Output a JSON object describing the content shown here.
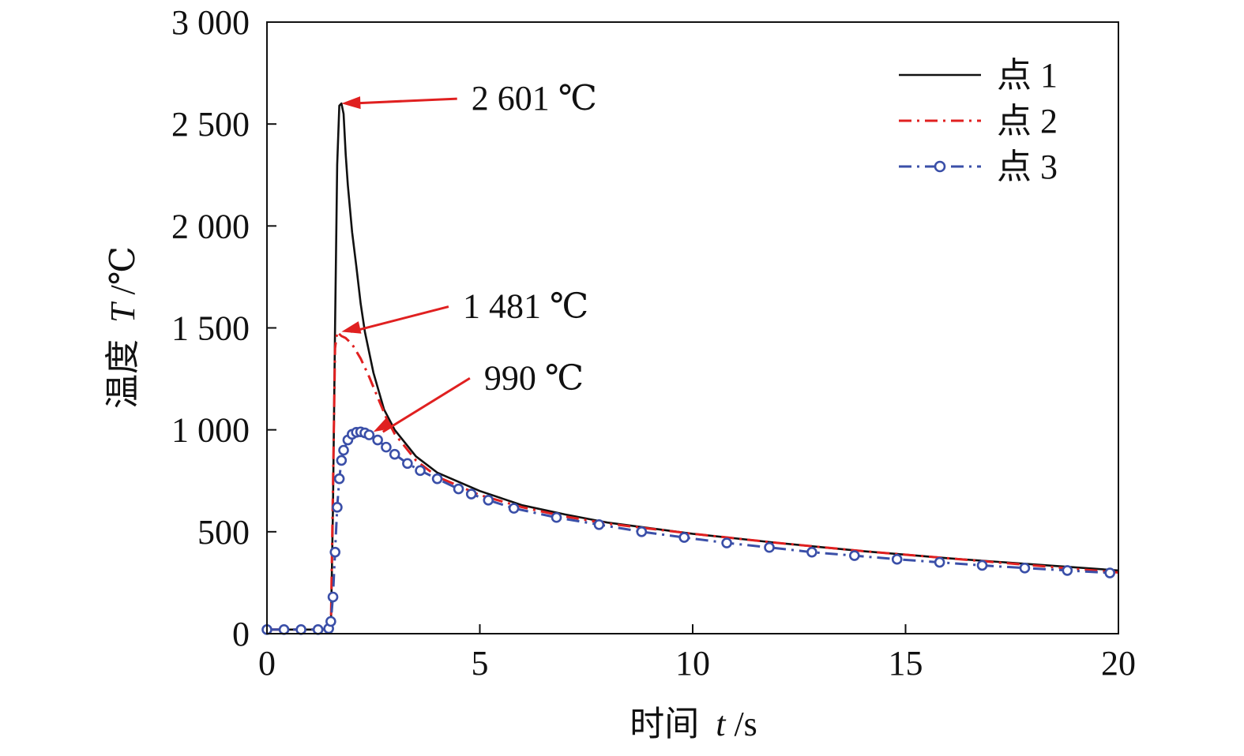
{
  "chart_data": {
    "type": "line",
    "xlabel_cn": "时间",
    "xlabel_var": "t",
    "xlabel_unit": "/s",
    "ylabel_cn": "温度",
    "ylabel_var": "T",
    "ylabel_unit": "/℃",
    "xlim": [
      0,
      20
    ],
    "ylim": [
      0,
      3000
    ],
    "xticks": [
      0,
      5,
      10,
      15,
      20
    ],
    "xtick_labels": [
      "0",
      "5",
      "10",
      "15",
      "20"
    ],
    "yticks": [
      0,
      500,
      1000,
      1500,
      2000,
      2500,
      3000
    ],
    "ytick_labels": [
      "0",
      "500",
      "1 000",
      "1 500",
      "2 000",
      "2 500",
      "3 000"
    ],
    "legend_position": "top-right",
    "colors": {
      "point1": "#111111",
      "point2": "#e02020",
      "point3": "#3a4fa8",
      "arrow": "#e02020"
    },
    "series": [
      {
        "name": "点 1",
        "style": "solid",
        "x": [
          0,
          1.5,
          1.55,
          1.6,
          1.65,
          1.7,
          1.75,
          1.8,
          1.85,
          1.9,
          2.0,
          2.1,
          2.2,
          2.3,
          2.5,
          2.75,
          3.0,
          3.5,
          4.0,
          5.0,
          6.0,
          7.0,
          8.0,
          10.0,
          12.0,
          14.0,
          16.0,
          18.0,
          20.0
        ],
        "y": [
          20,
          20,
          600,
          1500,
          2300,
          2590,
          2601,
          2550,
          2350,
          2200,
          1970,
          1800,
          1620,
          1480,
          1280,
          1100,
          1000,
          870,
          790,
          700,
          630,
          585,
          545,
          490,
          445,
          405,
          370,
          340,
          310
        ]
      },
      {
        "name": "点 2",
        "style": "dash-dot",
        "x": [
          0,
          1.5,
          1.55,
          1.6,
          1.65,
          1.7,
          1.75,
          1.85,
          2.0,
          2.2,
          2.4,
          2.6,
          2.8,
          3.0,
          3.5,
          4.0,
          5.0,
          6.0,
          7.0,
          8.0,
          10.0,
          12.0,
          14.0,
          16.0,
          18.0,
          20.0
        ],
        "y": [
          20,
          20,
          700,
          1400,
          1481,
          1470,
          1460,
          1450,
          1420,
          1350,
          1260,
          1160,
          1060,
          980,
          850,
          770,
          680,
          620,
          575,
          540,
          490,
          445,
          405,
          370,
          335,
          300
        ]
      },
      {
        "name": "点 3",
        "style": "marker-line",
        "x": [
          0,
          0.4,
          0.8,
          1.2,
          1.45,
          1.5,
          1.55,
          1.6,
          1.65,
          1.7,
          1.75,
          1.8,
          1.9,
          2.0,
          2.1,
          2.2,
          2.3,
          2.4,
          2.6,
          2.8,
          3.0,
          3.3,
          3.6,
          4.0,
          4.5,
          4.8,
          5.2,
          5.8,
          6.8,
          7.8,
          8.8,
          9.8,
          10.8,
          11.8,
          12.8,
          13.8,
          14.8,
          15.8,
          16.8,
          17.8,
          18.8,
          19.8
        ],
        "y": [
          20,
          20,
          20,
          20,
          25,
          60,
          180,
          400,
          620,
          760,
          850,
          900,
          950,
          978,
          988,
          990,
          985,
          975,
          950,
          915,
          880,
          835,
          800,
          760,
          710,
          685,
          655,
          615,
          570,
          535,
          500,
          472,
          445,
          423,
          400,
          383,
          365,
          350,
          335,
          322,
          310,
          298
        ]
      }
    ],
    "annotations": [
      {
        "text": "2 601 ℃",
        "x": 1.75,
        "y": 2601,
        "text_x": 4.8,
        "text_y": 2601
      },
      {
        "text": "1 481 ℃",
        "x": 1.75,
        "y": 1481,
        "text_x": 4.6,
        "text_y": 1581
      },
      {
        "text": "990 ℃",
        "x": 2.5,
        "y": 990,
        "text_x": 5.1,
        "text_y": 1230
      }
    ]
  }
}
